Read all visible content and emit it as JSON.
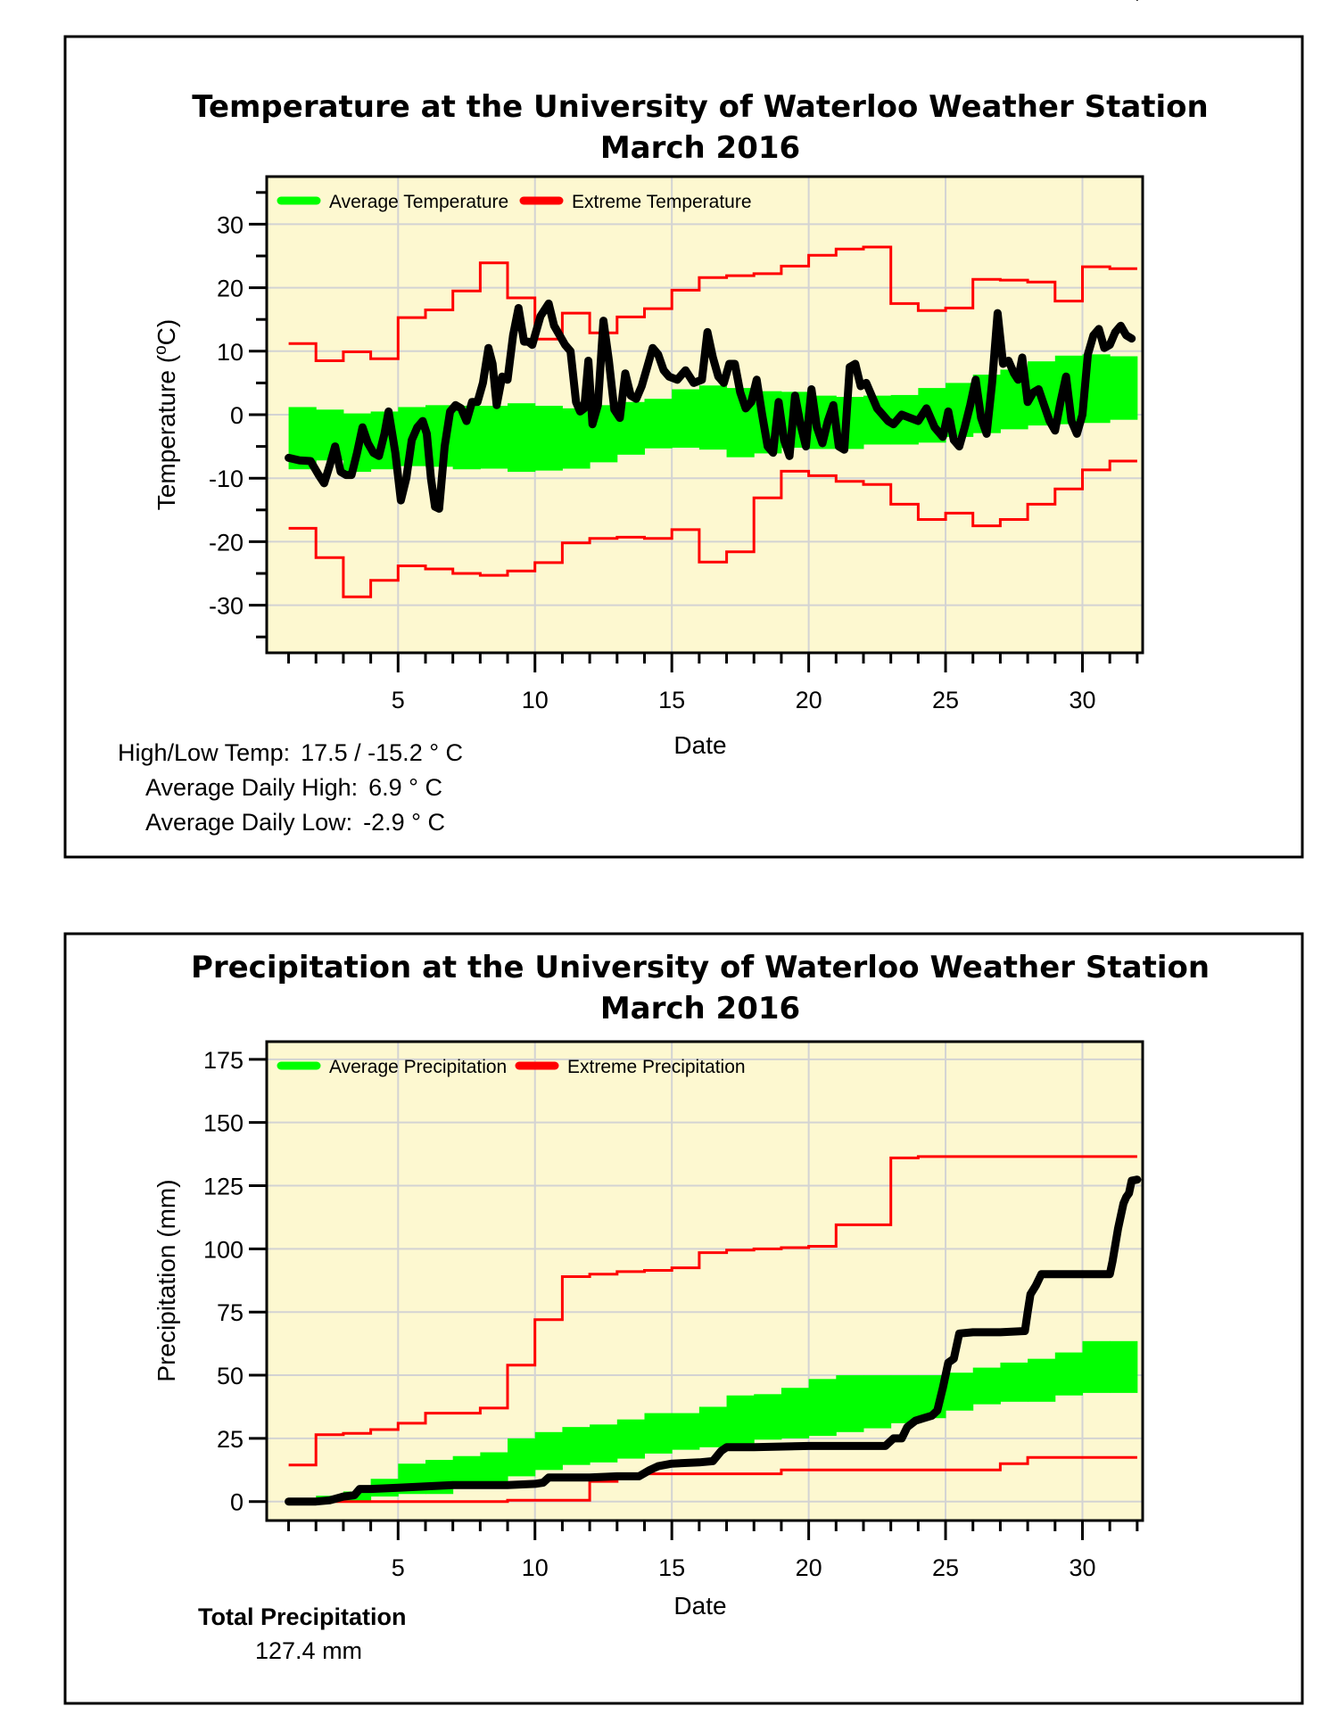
{
  "colors": {
    "plot_background": "#fdf8d0",
    "grid": "#d3d3d3",
    "average": "#00ff00",
    "extreme": "#ff0000",
    "observed": "#000000"
  },
  "chart_data": [
    {
      "type": "line",
      "title": "Temperature at the University of Waterloo Weather Station",
      "subtitle": "March 2016",
      "xlabel": "Date",
      "ylabel": "Temperature (°C)",
      "ylabel_main": "Temperature (",
      "ylabel_sup": "o",
      "ylabel_unit": "C)",
      "xlim": [
        0.2,
        32.2
      ],
      "ylim": [
        -37.5,
        37.5
      ],
      "xticks": [
        5,
        10,
        15,
        20,
        25,
        30
      ],
      "xtick_labels": [
        "5",
        "10",
        "15",
        "20",
        "25",
        "30"
      ],
      "yticks": [
        -30,
        -20,
        -10,
        0,
        10,
        20,
        30
      ],
      "ytick_labels": [
        "-30",
        "-20",
        "-10",
        "0",
        "10",
        "20",
        "30"
      ],
      "grid": true,
      "legend_position": "top-left",
      "legend": [
        {
          "label": "Average Temperature",
          "color": "#00ff00"
        },
        {
          "label": "Extreme Temperature",
          "color": "#ff0000"
        }
      ],
      "days": [
        1,
        2,
        3,
        4,
        5,
        6,
        7,
        8,
        9,
        10,
        11,
        12,
        13,
        14,
        15,
        16,
        17,
        18,
        19,
        20,
        21,
        22,
        23,
        24,
        25,
        26,
        27,
        28,
        29,
        30,
        31
      ],
      "average_high": [
        1.2,
        0.8,
        0.2,
        0.5,
        1.2,
        1.5,
        1.4,
        1.4,
        1.8,
        1.4,
        1.0,
        1.5,
        2.0,
        2.5,
        4.0,
        4.6,
        4.2,
        3.7,
        3.6,
        3.0,
        2.8,
        3.0,
        3.1,
        4.2,
        5.0,
        6.3,
        7.1,
        8.4,
        9.3,
        9.5,
        9.2
      ],
      "average_low": [
        -8.6,
        -7.2,
        -9.0,
        -8.6,
        -8.1,
        -8.2,
        -8.6,
        -8.5,
        -9.0,
        -8.8,
        -8.5,
        -7.5,
        -6.3,
        -5.3,
        -5.2,
        -5.5,
        -6.7,
        -6.1,
        -5.2,
        -5.4,
        -5.4,
        -4.7,
        -4.7,
        -4.4,
        -3.5,
        -2.9,
        -2.3,
        -1.7,
        -1.5,
        -1.3,
        -0.8
      ],
      "extreme_max": [
        11.2,
        8.5,
        9.9,
        8.8,
        15.3,
        16.5,
        19.5,
        23.9,
        18.4,
        11.9,
        16.0,
        12.9,
        15.4,
        16.7,
        19.6,
        21.6,
        21.9,
        22.2,
        23.4,
        25.1,
        26.1,
        26.4,
        17.5,
        16.4,
        16.8,
        21.3,
        21.2,
        20.9,
        17.9,
        23.3,
        23.0
      ],
      "extreme_min": [
        -17.9,
        -22.5,
        -28.7,
        -26.1,
        -23.8,
        -24.3,
        -25.0,
        -25.3,
        -24.6,
        -23.3,
        -20.2,
        -19.5,
        -19.3,
        -19.5,
        -18.1,
        -23.2,
        -21.6,
        -13.1,
        -8.9,
        -9.6,
        -10.5,
        -11.0,
        -14.1,
        -16.5,
        -15.5,
        -17.5,
        -16.5,
        -14.1,
        -11.7,
        -8.7,
        -7.3
      ],
      "observed_x": [
        1.0,
        1.4,
        1.8,
        2.1,
        2.3,
        2.5,
        2.7,
        2.9,
        3.1,
        3.3,
        3.5,
        3.7,
        3.9,
        4.1,
        4.3,
        4.5,
        4.65,
        4.9,
        5.1,
        5.3,
        5.5,
        5.7,
        5.9,
        6.05,
        6.2,
        6.35,
        6.5,
        6.7,
        6.9,
        7.1,
        7.3,
        7.5,
        7.7,
        7.9,
        8.1,
        8.3,
        8.45,
        8.6,
        8.8,
        9.0,
        9.2,
        9.4,
        9.6,
        9.75,
        9.9,
        10.2,
        10.5,
        10.7,
        10.9,
        11.1,
        11.3,
        11.5,
        11.65,
        11.8,
        11.95,
        12.1,
        12.3,
        12.5,
        12.7,
        12.9,
        13.1,
        13.3,
        13.5,
        13.7,
        13.9,
        14.1,
        14.3,
        14.5,
        14.7,
        14.9,
        15.2,
        15.5,
        15.8,
        16.1,
        16.3,
        16.5,
        16.7,
        16.9,
        17.1,
        17.3,
        17.5,
        17.7,
        17.9,
        18.1,
        18.3,
        18.5,
        18.7,
        18.9,
        19.1,
        19.3,
        19.5,
        19.7,
        19.9,
        20.1,
        20.3,
        20.5,
        20.7,
        20.9,
        21.1,
        21.3,
        21.5,
        21.7,
        21.9,
        22.1,
        22.3,
        22.5,
        22.7,
        22.9,
        23.1,
        23.4,
        23.7,
        24.0,
        24.3,
        24.6,
        24.9,
        25.1,
        25.3,
        25.5,
        25.7,
        25.9,
        26.1,
        26.3,
        26.5,
        26.7,
        26.9,
        27.1,
        27.3,
        27.5,
        27.65,
        27.8,
        28.0,
        28.2,
        28.4,
        28.6,
        28.8,
        29.0,
        29.2,
        29.4,
        29.6,
        29.8,
        30.0,
        30.2,
        30.4,
        30.6,
        30.8,
        31.0,
        31.2,
        31.4,
        31.6,
        31.8,
        32.0
      ],
      "observed_y": [
        -6.8,
        -7.2,
        -7.3,
        -9.5,
        -10.8,
        -8.0,
        -5.0,
        -9.0,
        -9.5,
        -9.5,
        -6.0,
        -2.0,
        -4.5,
        -6.0,
        -6.5,
        -3.0,
        0.5,
        -6.0,
        -13.5,
        -10.0,
        -4.0,
        -2.0,
        -1.0,
        -3.0,
        -10.0,
        -14.5,
        -14.8,
        -5.0,
        0.5,
        1.5,
        1.0,
        -1.0,
        2.0,
        2.0,
        5.0,
        10.5,
        8.0,
        1.5,
        6.0,
        5.5,
        12.5,
        16.8,
        11.5,
        11.5,
        11.0,
        15.5,
        17.5,
        14.0,
        12.5,
        11.0,
        10.0,
        2.0,
        0.5,
        1.0,
        8.5,
        -1.5,
        1.5,
        14.8,
        8.5,
        0.8,
        -0.5,
        6.5,
        3.0,
        2.5,
        4.5,
        7.5,
        10.5,
        9.5,
        7.0,
        6.0,
        5.5,
        7.0,
        5.0,
        5.5,
        13.0,
        9.0,
        6.0,
        5.0,
        8.0,
        8.0,
        3.5,
        1.0,
        2.0,
        5.5,
        0.0,
        -5.0,
        -6.0,
        2.0,
        -4.0,
        -6.5,
        3.0,
        -1.5,
        -5.0,
        4.0,
        -2.0,
        -4.5,
        -1.0,
        1.5,
        -5.0,
        -5.5,
        7.5,
        8.0,
        4.5,
        5.0,
        3.0,
        1.0,
        0.0,
        -1.0,
        -1.5,
        0.0,
        -0.5,
        -1.0,
        1.0,
        -2.0,
        -3.5,
        0.5,
        -4.0,
        -5.0,
        -2.0,
        1.5,
        5.5,
        -0.5,
        -3.0,
        5.0,
        16.0,
        8.0,
        8.5,
        6.5,
        5.5,
        9.0,
        2.0,
        3.5,
        4.0,
        1.5,
        -1.0,
        -2.5,
        2.0,
        6.0,
        -1.0,
        -3.0,
        0.0,
        9.5,
        12.5,
        13.5,
        10.5,
        11.0,
        13.0,
        14.0,
        12.5,
        12.0
      ]
    },
    {
      "type": "line",
      "title": "Precipitation at the University of Waterloo Weather Station",
      "subtitle": "March 2016",
      "xlabel": "Date",
      "ylabel": "Precipitation (mm)",
      "xlim": [
        0.2,
        32.2
      ],
      "ylim": [
        -7.5,
        182
      ],
      "xticks": [
        5,
        10,
        15,
        20,
        25,
        30
      ],
      "xtick_labels": [
        "5",
        "10",
        "15",
        "20",
        "25",
        "30"
      ],
      "yticks": [
        0,
        25,
        50,
        75,
        100,
        125,
        150,
        175
      ],
      "ytick_labels": [
        "0",
        "25",
        "50",
        "75",
        "100",
        "125",
        "150",
        "175"
      ],
      "grid": true,
      "legend_position": "top-left",
      "legend": [
        {
          "label": "Average Precipitation",
          "color": "#00ff00"
        },
        {
          "label": "Extreme Precipitation",
          "color": "#ff0000"
        }
      ],
      "days": [
        1,
        2,
        3,
        4,
        5,
        6,
        7,
        8,
        9,
        10,
        11,
        12,
        13,
        14,
        15,
        16,
        17,
        18,
        19,
        20,
        21,
        22,
        23,
        24,
        25,
        26,
        27,
        28,
        29,
        30,
        31
      ],
      "average_high": [
        0.5,
        2.3,
        4.0,
        9.0,
        15.0,
        16.5,
        18.0,
        19.5,
        25.0,
        27.5,
        29.5,
        30.5,
        32.5,
        35.0,
        35.0,
        37.5,
        42.0,
        42.5,
        45.0,
        48.5,
        50.0,
        50.0,
        50.0,
        50.0,
        51.0,
        53.0,
        55.0,
        56.5,
        59.0,
        63.5,
        63.5
      ],
      "average_low": [
        0.0,
        0.0,
        0.2,
        2.0,
        3.0,
        3.0,
        6.0,
        8.0,
        10.0,
        12.5,
        14.5,
        15.5,
        17.0,
        19.0,
        20.5,
        21.5,
        23.0,
        24.5,
        25.0,
        26.0,
        27.5,
        29.0,
        31.0,
        33.0,
        36.0,
        38.5,
        39.5,
        39.5,
        42.0,
        43.0,
        43.0
      ],
      "extreme_max": [
        14.5,
        26.5,
        27.0,
        28.5,
        31.0,
        35.0,
        35.0,
        37.0,
        54.0,
        72.0,
        89.0,
        90.0,
        91.0,
        91.5,
        92.5,
        98.5,
        99.5,
        100.0,
        100.5,
        101.0,
        109.5,
        109.5,
        136.0,
        136.5,
        136.5,
        136.5,
        136.5,
        136.5,
        136.5,
        136.5,
        136.5
      ],
      "extreme_min": [
        0.0,
        0.0,
        0.0,
        0.0,
        0.0,
        0.0,
        0.0,
        0.0,
        0.5,
        0.5,
        0.5,
        8.0,
        11.0,
        11.0,
        11.0,
        11.0,
        11.0,
        11.0,
        12.5,
        12.5,
        12.5,
        12.5,
        12.5,
        12.5,
        12.5,
        12.5,
        15.0,
        17.5,
        17.5,
        17.5,
        17.5
      ],
      "observed_x": [
        1.0,
        2.0,
        2.5,
        3.0,
        3.4,
        3.6,
        4.0,
        5.0,
        6.0,
        7.0,
        8.0,
        9.0,
        10.0,
        10.3,
        10.5,
        11.0,
        12.0,
        13.0,
        13.8,
        14.2,
        14.5,
        15.0,
        16.0,
        16.5,
        16.8,
        17.0,
        18.0,
        20.0,
        22.0,
        22.8,
        23.1,
        23.4,
        23.6,
        23.9,
        24.2,
        24.5,
        24.7,
        24.9,
        25.1,
        25.3,
        25.5,
        26.0,
        27.0,
        27.9,
        28.0,
        28.1,
        28.3,
        28.5,
        29.0,
        30.0,
        31.0,
        31.1,
        31.3,
        31.5,
        31.6,
        31.7,
        31.8,
        32.0
      ],
      "observed_y": [
        0.0,
        0.0,
        0.5,
        2.0,
        2.5,
        5.0,
        5.0,
        5.5,
        6.0,
        6.5,
        6.5,
        6.5,
        7.0,
        7.5,
        9.5,
        9.5,
        9.5,
        10.0,
        10.0,
        12.5,
        14.0,
        15.0,
        15.5,
        16.0,
        20.0,
        21.5,
        21.5,
        22.0,
        22.0,
        22.0,
        25.0,
        25.0,
        29.5,
        32.0,
        33.0,
        34.0,
        36.0,
        45.0,
        55.0,
        56.5,
        66.5,
        67.0,
        67.0,
        67.5,
        75.0,
        82.0,
        85.5,
        90.0,
        90.0,
        90.0,
        90.0,
        95.0,
        108.0,
        118.0,
        120.5,
        122.0,
        127.0,
        127.4
      ]
    }
  ],
  "temperature_panel": {
    "stats": {
      "high_low_label": "High/Low Temp:",
      "high_low_value": "17.5 / -15.2 ° C",
      "avg_high_label": "Average Daily High:",
      "avg_high_value": "6.9 ° C",
      "avg_low_label": "Average Daily Low:",
      "avg_low_value": "-2.9 ° C"
    }
  },
  "precipitation_panel": {
    "stats": {
      "total_label": "Total Precipitation",
      "total_value": "127.4 mm"
    }
  }
}
